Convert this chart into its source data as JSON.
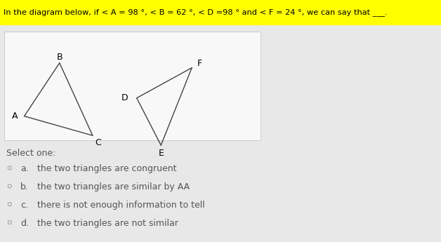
{
  "title": "In the diagram below, if < A = 98 °, < B = 62 °, < D =98 ° and < F = 24 °, we can say that ___.",
  "title_bg": "#ffff00",
  "bg_color": "#e8e8e8",
  "diagram_bg": "#f8f8f8",
  "diagram_border": "#cccccc",
  "triangle1": {
    "vertices": {
      "A": [
        0.055,
        0.52
      ],
      "B": [
        0.135,
        0.74
      ],
      "C": [
        0.21,
        0.44
      ]
    },
    "label_offsets": {
      "A": [
        -0.022,
        0.0
      ],
      "B": [
        0.0,
        0.025
      ],
      "C": [
        0.012,
        -0.03
      ]
    },
    "edges": [
      [
        "A",
        "B"
      ],
      [
        "B",
        "C"
      ],
      [
        "A",
        "C"
      ]
    ]
  },
  "triangle2": {
    "vertices": {
      "D": [
        0.31,
        0.595
      ],
      "E": [
        0.365,
        0.4
      ],
      "F": [
        0.435,
        0.72
      ]
    },
    "label_offsets": {
      "D": [
        -0.028,
        0.0
      ],
      "E": [
        0.0,
        -0.032
      ],
      "F": [
        0.018,
        0.018
      ]
    },
    "edges": [
      [
        "D",
        "E"
      ],
      [
        "E",
        "F"
      ],
      [
        "D",
        "F"
      ]
    ]
  },
  "line_color": "#444444",
  "select_one_text": "Select one:",
  "options": [
    {
      "key": "a.",
      "text": "   the two triangles are congruent"
    },
    {
      "key": "b.",
      "text": "   the two triangles are similar by AA"
    },
    {
      "key": "c.",
      "text": "   there is not enough information to tell"
    },
    {
      "key": "d.",
      "text": "   the two triangles are not similar"
    }
  ],
  "option_color": "#aaaaaa",
  "text_color": "#555555",
  "select_fontsize": 9,
  "option_fontsize": 9,
  "label_fontsize": 9
}
